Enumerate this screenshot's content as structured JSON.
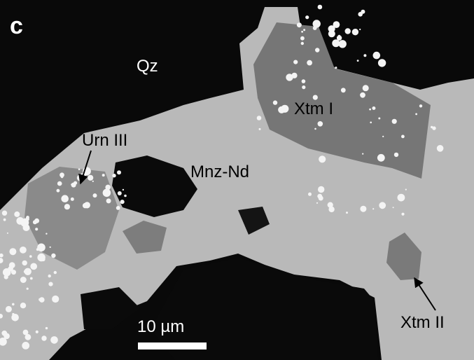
{
  "panel_label": "c",
  "labels": [
    "Qz",
    "Urn III",
    "Mnz-Nd",
    "Xtm I",
    "Xtm II"
  ],
  "scale_bar": {
    "label": "10 µm"
  }
}
